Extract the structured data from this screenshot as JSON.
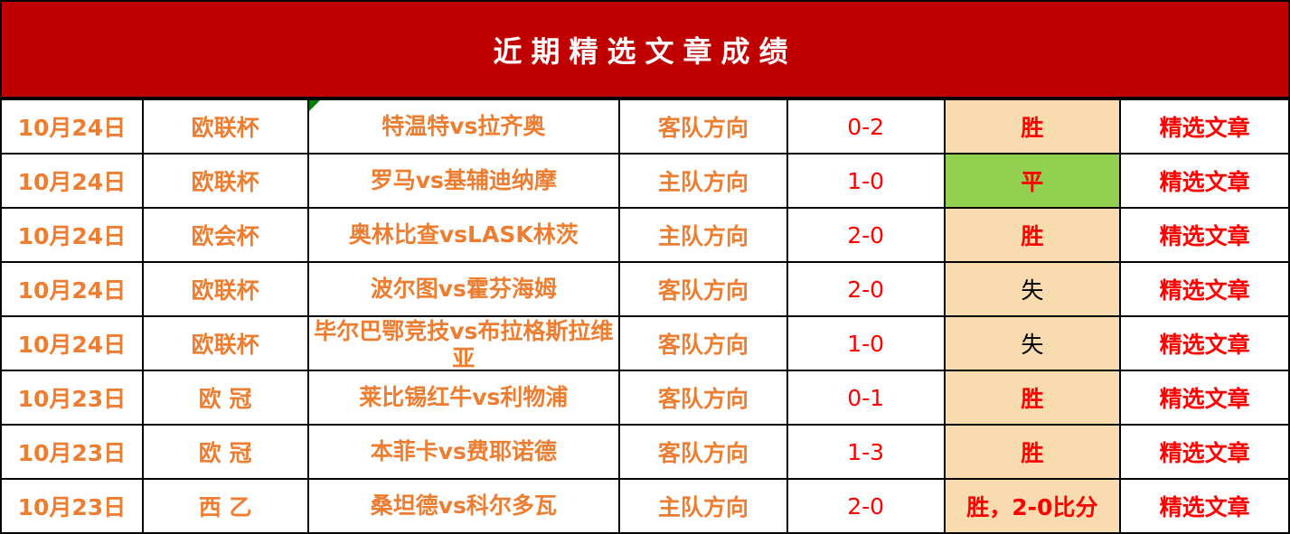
{
  "title": "近期精选文章成绩",
  "colors": {
    "header_bg": "#c00000",
    "text_orange": "#ed7d31",
    "text_red": "#ff0000",
    "result_bg": "#f8dcb0",
    "draw_bg": "#92d050"
  },
  "rows": [
    {
      "date": "10月24日",
      "league": "欧联杯",
      "match": "特温特vs拉齐奥",
      "direction": "客队方向",
      "score": "0-2",
      "result": "胜",
      "link": "精选文章"
    },
    {
      "date": "10月24日",
      "league": "欧联杯",
      "match": "罗马vs基辅迪纳摩",
      "direction": "主队方向",
      "score": "1-0",
      "result": "平",
      "link": "精选文章"
    },
    {
      "date": "10月24日",
      "league": "欧会杯",
      "match": "奥林比查vsLASK林茨",
      "direction": "主队方向",
      "score": "2-0",
      "result": "胜",
      "link": "精选文章"
    },
    {
      "date": "10月24日",
      "league": "欧联杯",
      "match": "波尔图vs霍芬海姆",
      "direction": "客队方向",
      "score": "2-0",
      "result": "失",
      "link": "精选文章"
    },
    {
      "date": "10月24日",
      "league": "欧联杯",
      "match": "毕尔巴鄂竞技vs布拉格斯拉维亚",
      "direction": "客队方向",
      "score": "1-0",
      "result": "失",
      "link": "精选文章"
    },
    {
      "date": "10月23日",
      "league": "欧 冠",
      "match": "莱比锡红牛vs利物浦",
      "direction": "客队方向",
      "score": "0-1",
      "result": "胜",
      "link": "精选文章"
    },
    {
      "date": "10月23日",
      "league": "欧 冠",
      "match": "本菲卡vs费耶诺德",
      "direction": "客队方向",
      "score": "1-3",
      "result": "胜",
      "link": "精选文章"
    },
    {
      "date": "10月23日",
      "league": "西 乙",
      "match": "桑坦德vs科尔多瓦",
      "direction": "主队方向",
      "score": "2-0",
      "result": "胜，2-0比分",
      "link": "精选文章"
    }
  ]
}
